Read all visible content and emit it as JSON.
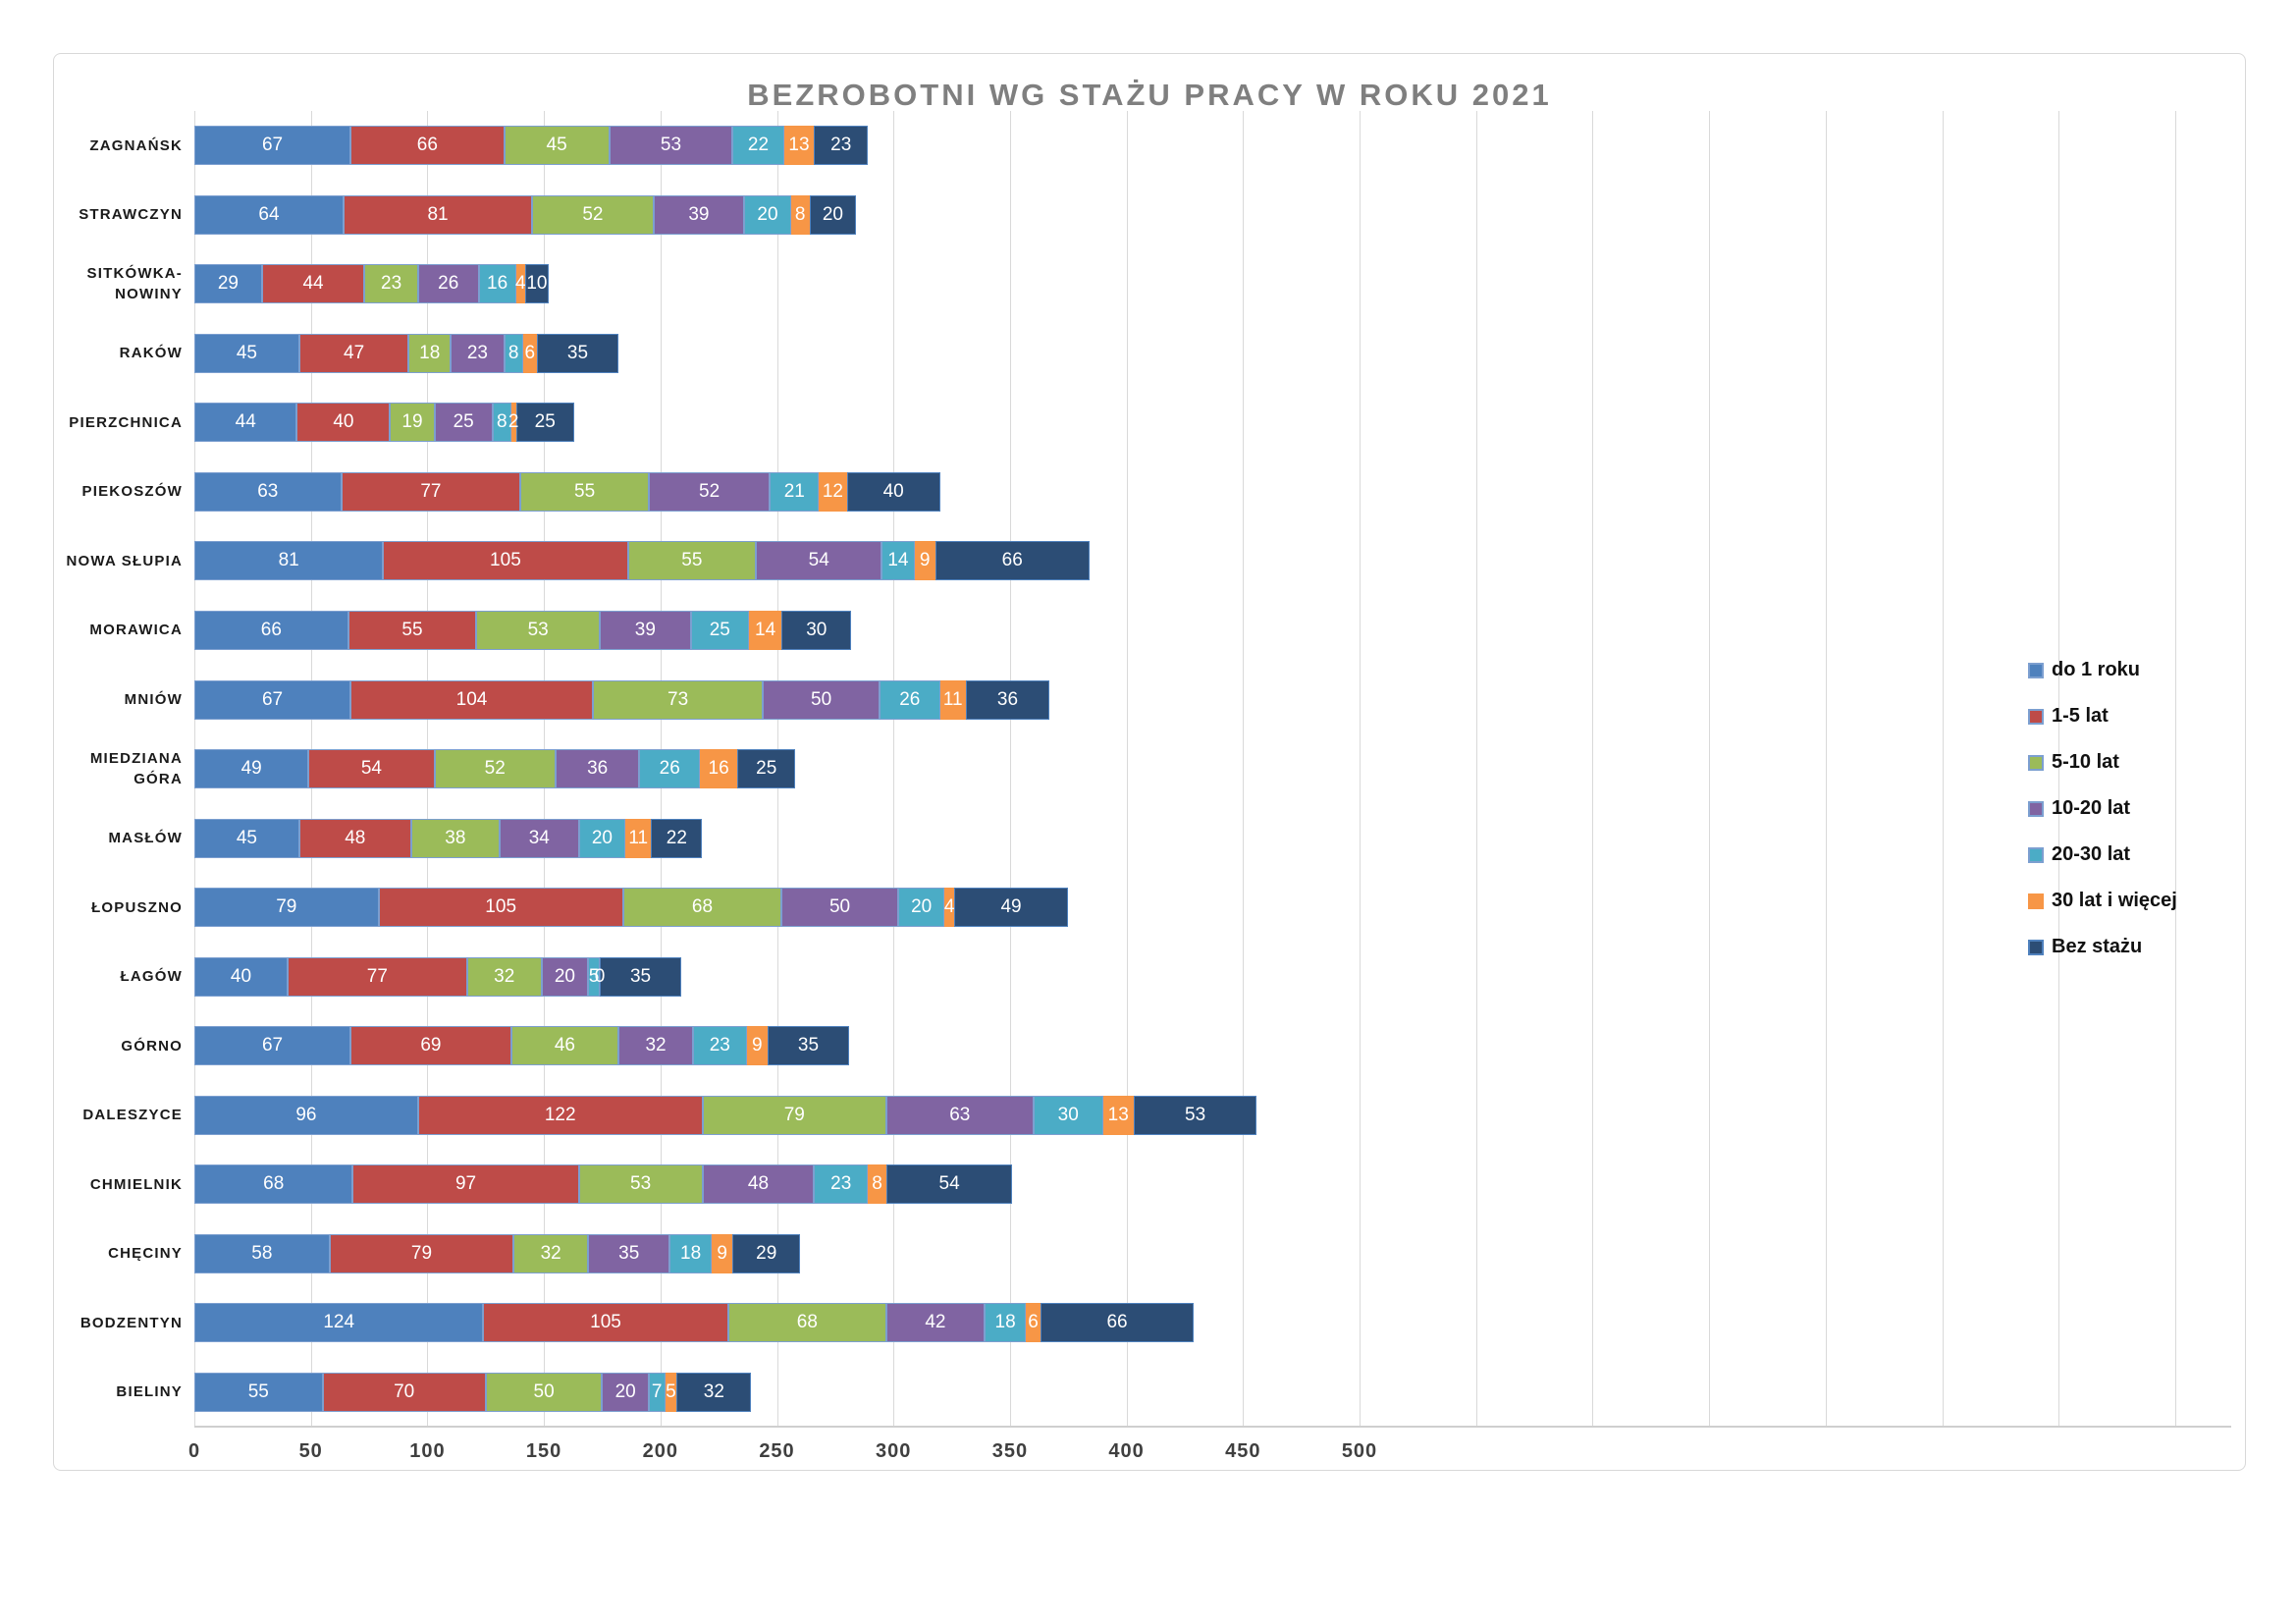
{
  "chart_data": {
    "type": "bar",
    "variant": "horizontal-stacked",
    "title": "BEZROBOTNI WG STAŻU PRACY W ROKU 2021",
    "value_label_color": "#FFFFFF",
    "grid": true,
    "legend_position": "right",
    "xlim": [
      0,
      500
    ],
    "x_ticks": [
      0,
      50,
      100,
      150,
      200,
      250,
      300,
      350,
      400,
      450,
      500
    ],
    "categories": [
      "ZAGNAŃSK",
      "STRAWCZYN",
      "SITKÓWKA-NOWINY",
      "RAKÓW",
      "PIERZCHNICA",
      "PIEKOSZÓW",
      "NOWA SŁUPIA",
      "MORAWICA",
      "MNIÓW",
      "MIEDZIANA GÓRA",
      "MASŁÓW",
      "ŁOPUSZNO",
      "ŁAGÓW",
      "GÓRNO",
      "DALESZYCE",
      "CHMIELNIK",
      "CHĘCINY",
      "BODZENTYN",
      "BIELINY"
    ],
    "series": [
      {
        "name": "do 1 roku",
        "color": "#4E81BD",
        "border": "#7C9FD0",
        "values": [
          67,
          64,
          29,
          45,
          44,
          63,
          81,
          66,
          67,
          49,
          45,
          79,
          40,
          67,
          96,
          68,
          58,
          124,
          55
        ]
      },
      {
        "name": "1-5 lat",
        "color": "#BE4B48",
        "border": "#7C9FD0",
        "values": [
          66,
          81,
          44,
          47,
          40,
          77,
          105,
          55,
          104,
          54,
          48,
          105,
          77,
          69,
          122,
          97,
          79,
          105,
          70
        ]
      },
      {
        "name": "5-10 lat",
        "color": "#9BBB59",
        "border": "#7C9FD0",
        "values": [
          45,
          52,
          23,
          18,
          19,
          55,
          55,
          53,
          73,
          52,
          38,
          68,
          32,
          46,
          79,
          53,
          32,
          68,
          50
        ]
      },
      {
        "name": "10-20 lat",
        "color": "#8064A2",
        "border": "#7C9FD0",
        "values": [
          53,
          39,
          26,
          23,
          25,
          52,
          54,
          39,
          50,
          36,
          34,
          50,
          20,
          32,
          63,
          48,
          35,
          42,
          20
        ]
      },
      {
        "name": "20-30 lat",
        "color": "#4BACC6",
        "border": "#7C9FD0",
        "values": [
          22,
          20,
          16,
          8,
          8,
          21,
          14,
          25,
          26,
          26,
          20,
          20,
          5,
          23,
          30,
          23,
          18,
          18,
          7
        ]
      },
      {
        "name": "30 lat i więcej",
        "color": "#F79646",
        "border": null,
        "values": [
          13,
          8,
          4,
          6,
          2,
          12,
          9,
          14,
          11,
          16,
          11,
          4,
          0,
          9,
          13,
          8,
          9,
          6,
          5
        ]
      },
      {
        "name": "Bez stażu",
        "color": "#2C4D75",
        "border": "#4F81BD",
        "values": [
          23,
          20,
          10,
          35,
          25,
          40,
          66,
          30,
          36,
          25,
          22,
          49,
          35,
          35,
          53,
          54,
          29,
          66,
          32
        ]
      }
    ]
  }
}
